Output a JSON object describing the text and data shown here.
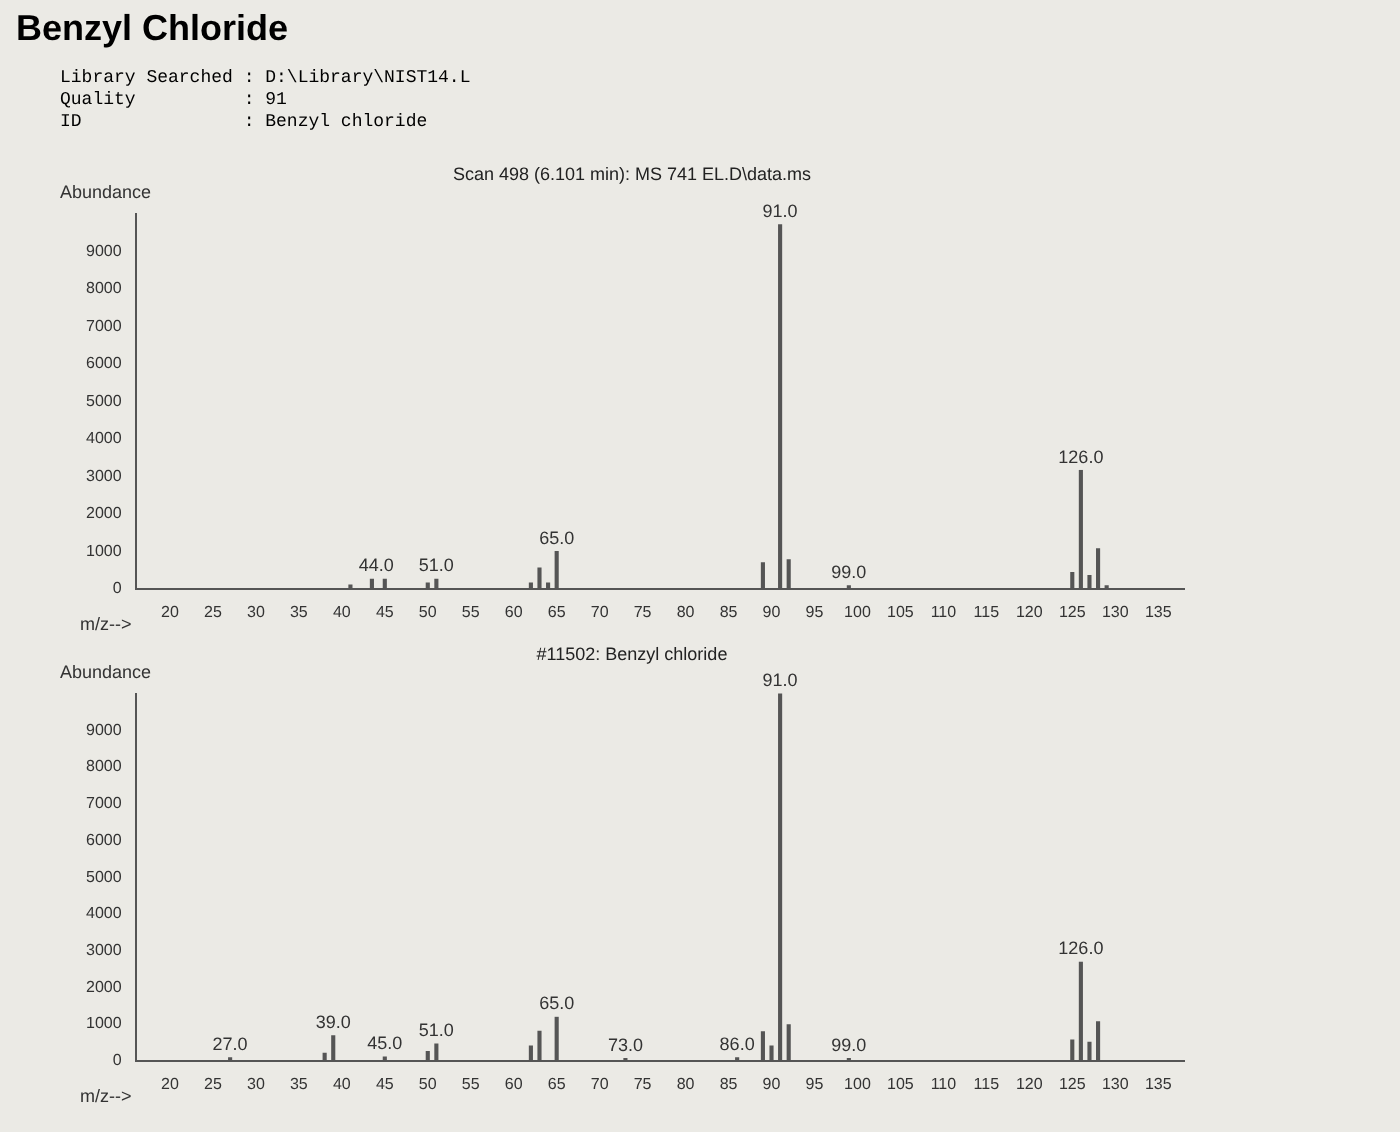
{
  "chart_data": [
    {
      "type": "bar",
      "title": "Benzyl Chloride",
      "subtitle": "Scan 498 (6.101 min): MS 741 EL.D\\data.ms",
      "xlabel": "m/z-->",
      "ylabel": "Abundance",
      "x": [
        41,
        43.5,
        45,
        50,
        51,
        62,
        63,
        64,
        65,
        89,
        91,
        92,
        99,
        125,
        126,
        127,
        128,
        129
      ],
      "series": [
        {
          "color": "#555555",
          "values": [
            100,
            250,
            250,
            150,
            250,
            150,
            550,
            150,
            990,
            690,
            9700,
            770,
            80,
            430,
            3150,
            350,
            1060,
            80
          ]
        }
      ],
      "xlim": [
        16,
        138
      ],
      "xticks": [
        20,
        25,
        30,
        35,
        40,
        45,
        50,
        55,
        60,
        65,
        70,
        75,
        80,
        85,
        90,
        95,
        100,
        105,
        110,
        115,
        120,
        125,
        130,
        135
      ],
      "ylim": [
        0,
        10000
      ],
      "yticks": [
        0,
        1000,
        2000,
        3000,
        4000,
        5000,
        6000,
        7000,
        8000,
        9000
      ],
      "grid": false,
      "legend": false,
      "annotations": [
        "Library Searched : D:\\Library\\NIST14.L",
        "Quality          : 91",
        "ID               : Benzyl chloride",
        {
          "text": "44.0",
          "x": 44,
          "y": 250
        },
        {
          "text": "51.0",
          "x": 51,
          "y": 250
        },
        {
          "text": "65.0",
          "x": 65,
          "y": 990
        },
        {
          "text": "91.0",
          "x": 91,
          "y": 9700
        },
        {
          "text": "99.0",
          "x": 99,
          "y": 80
        },
        {
          "text": "126.0",
          "x": 126,
          "y": 3150
        }
      ]
    },
    {
      "type": "bar",
      "title": "#11502: Benzyl chloride",
      "xlabel": "m/z-->",
      "ylabel": "Abundance",
      "x": [
        27,
        38,
        39,
        45,
        50,
        51,
        62,
        63,
        65,
        73,
        86,
        89,
        90,
        91,
        92,
        99,
        125,
        126,
        127,
        128
      ],
      "series": [
        {
          "color": "#555555",
          "values": [
            80,
            200,
            680,
            100,
            250,
            450,
            400,
            800,
            1180,
            60,
            80,
            790,
            400,
            10000,
            980,
            60,
            560,
            2680,
            500,
            1060
          ]
        }
      ],
      "xlim": [
        16,
        138
      ],
      "xticks": [
        20,
        25,
        30,
        35,
        40,
        45,
        50,
        55,
        60,
        65,
        70,
        75,
        80,
        85,
        90,
        95,
        100,
        105,
        110,
        115,
        120,
        125,
        130,
        135
      ],
      "ylim": [
        0,
        10000
      ],
      "yticks": [
        0,
        1000,
        2000,
        3000,
        4000,
        5000,
        6000,
        7000,
        8000,
        9000
      ],
      "grid": false,
      "legend": false,
      "annotations": [
        {
          "text": "27.0",
          "x": 27,
          "y": 80
        },
        {
          "text": "39.0",
          "x": 39,
          "y": 680
        },
        {
          "text": "45.0",
          "x": 45,
          "y": 100
        },
        {
          "text": "51.0",
          "x": 51,
          "y": 450
        },
        {
          "text": "65.0",
          "x": 65,
          "y": 1180
        },
        {
          "text": "73.0",
          "x": 73,
          "y": 60
        },
        {
          "text": "86.0",
          "x": 86,
          "y": 80
        },
        {
          "text": "91.0",
          "x": 91,
          "y": 10000
        },
        {
          "text": "99.0",
          "x": 99,
          "y": 60
        },
        {
          "text": "126.0",
          "x": 126,
          "y": 2680
        }
      ]
    }
  ]
}
